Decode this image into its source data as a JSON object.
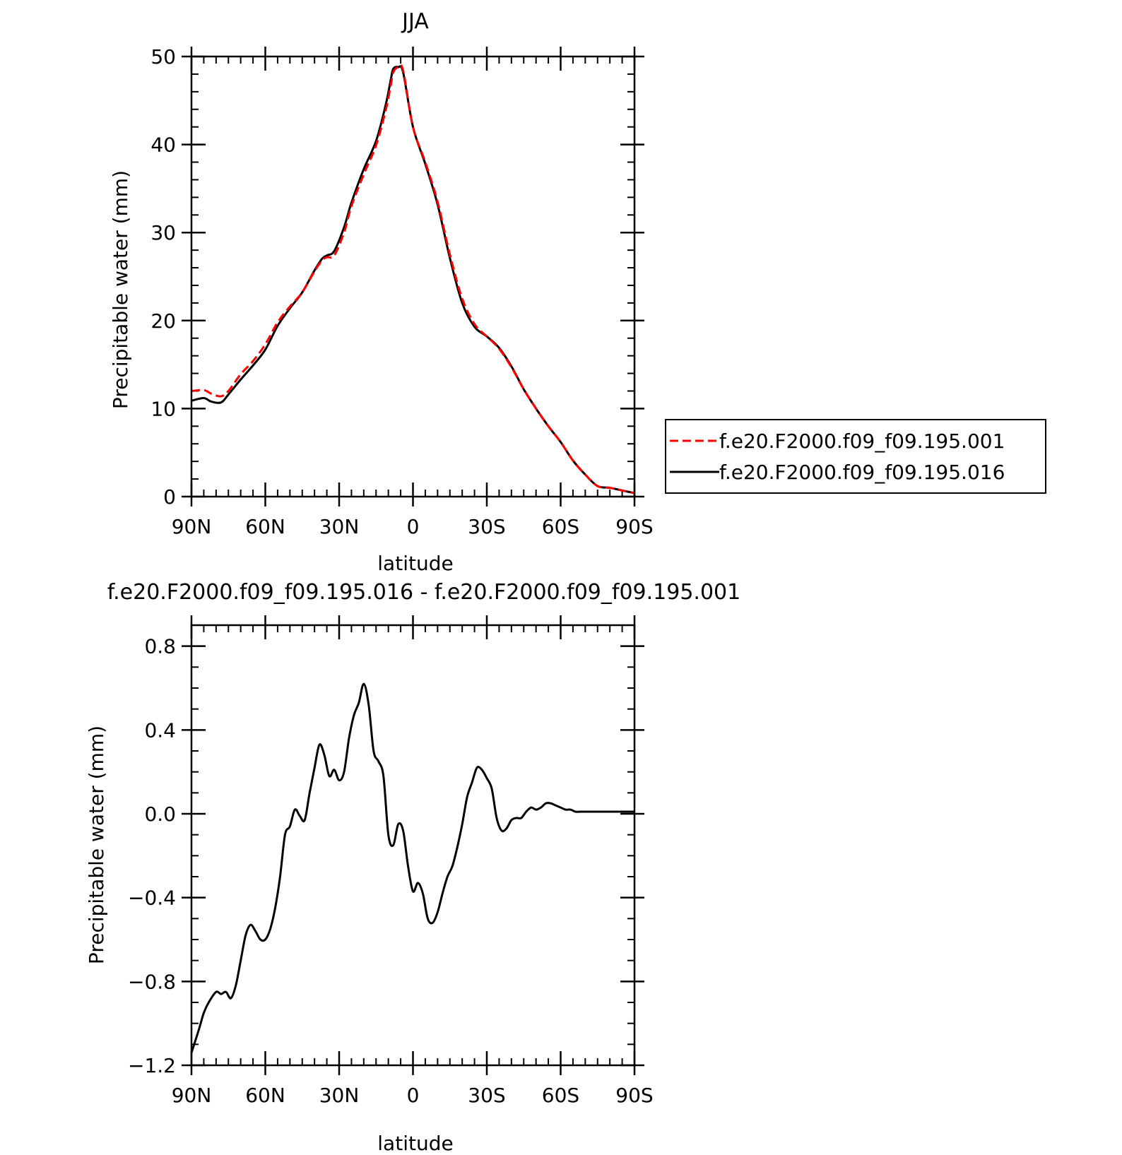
{
  "chart_data": [
    {
      "type": "line",
      "title": "JJA",
      "xlabel": "latitude",
      "ylabel": "Precipitable water (mm)",
      "xlim": [
        90,
        -90
      ],
      "ylim": [
        0,
        50
      ],
      "x_ticks": [
        90,
        60,
        30,
        0,
        -30,
        -60,
        -90
      ],
      "x_tick_labels": [
        "90N",
        "60N",
        "30N",
        "0",
        "30S",
        "60S",
        "90S"
      ],
      "y_ticks": [
        0,
        10,
        20,
        30,
        40,
        50
      ],
      "y_tick_labels": [
        "0",
        "10",
        "20",
        "30",
        "40",
        "50"
      ],
      "legend_position": "outside-right",
      "grid": false,
      "series": [
        {
          "name": "f.e20.F2000.f09_f09.195.001",
          "color": "#ff0000",
          "dash": "dashed",
          "x": [
            90,
            85,
            82,
            78,
            75,
            70,
            65,
            60,
            55,
            50,
            45,
            40,
            37,
            35,
            32,
            28,
            25,
            20,
            15,
            11,
            9,
            8,
            6,
            4,
            0,
            -5,
            -10,
            -15,
            -20,
            -25,
            -30,
            -35,
            -40,
            -45,
            -50,
            -55,
            -60,
            -65,
            -70,
            -75,
            -80,
            -85,
            -90
          ],
          "y": [
            12.0,
            12.1,
            11.7,
            11.4,
            12.0,
            13.9,
            15.4,
            17.3,
            19.8,
            21.6,
            23.2,
            25.6,
            26.8,
            27.2,
            27.4,
            30.0,
            33.0,
            36.6,
            39.9,
            44.0,
            46.8,
            48.2,
            48.8,
            48.4,
            42.0,
            38.0,
            33.5,
            27.5,
            22.5,
            19.6,
            18.2,
            16.8,
            14.7,
            12.2,
            10.0,
            8.0,
            6.2,
            4.1,
            2.5,
            1.2,
            1.0,
            0.7,
            0.4
          ]
        },
        {
          "name": "f.e20.F2000.f09_f09.195.016",
          "color": "#000000",
          "dash": "solid",
          "x": [
            90,
            85,
            82,
            78,
            75,
            70,
            65,
            60,
            55,
            50,
            45,
            40,
            37,
            35,
            32,
            28,
            25,
            20,
            15,
            11,
            9,
            8,
            6,
            4,
            0,
            -5,
            -10,
            -15,
            -20,
            -25,
            -30,
            -35,
            -40,
            -45,
            -50,
            -55,
            -60,
            -65,
            -70,
            -75,
            -80,
            -85,
            -90
          ],
          "y": [
            10.9,
            11.2,
            10.8,
            10.7,
            11.6,
            13.3,
            14.9,
            16.7,
            19.4,
            21.4,
            23.2,
            25.7,
            27.0,
            27.4,
            27.9,
            30.6,
            33.4,
            37.2,
            40.4,
            44.6,
            47.4,
            48.6,
            48.8,
            48.2,
            42.0,
            37.8,
            33.2,
            27.1,
            22.0,
            19.3,
            18.2,
            16.9,
            14.8,
            12.2,
            10.0,
            8.0,
            6.2,
            4.1,
            2.5,
            1.2,
            1.0,
            0.7,
            0.4
          ]
        }
      ]
    },
    {
      "type": "line",
      "title": "f.e20.F2000.f09_f09.195.016 - f.e20.F2000.f09_f09.195.001",
      "xlabel": "latitude",
      "ylabel": "Precipitable water (mm)",
      "xlim": [
        90,
        -90
      ],
      "ylim": [
        -1.2,
        0.9
      ],
      "x_ticks": [
        90,
        60,
        30,
        0,
        -30,
        -60,
        -90
      ],
      "x_tick_labels": [
        "90N",
        "60N",
        "30N",
        "0",
        "30S",
        "60S",
        "90S"
      ],
      "y_ticks": [
        -1.2,
        -0.8,
        -0.4,
        0.0,
        0.4,
        0.8
      ],
      "y_tick_labels": [
        "−1.2",
        "−0.8",
        "−0.4",
        "0.0",
        "0.4",
        "0.8"
      ],
      "grid": false,
      "series": [
        {
          "color": "#000000",
          "dash": "solid",
          "x": [
            90,
            87,
            85,
            83,
            80,
            78,
            76,
            74,
            72,
            70,
            68,
            66,
            64,
            62,
            60,
            58,
            56,
            54,
            52,
            50,
            48,
            46,
            44,
            42,
            40,
            38,
            36,
            34,
            32,
            30,
            28,
            26,
            24,
            22,
            20,
            18,
            16,
            14,
            12,
            10,
            8,
            6,
            4,
            2,
            0,
            -2,
            -4,
            -6,
            -8,
            -10,
            -12,
            -14,
            -16,
            -18,
            -20,
            -22,
            -24,
            -26,
            -28,
            -30,
            -32,
            -34,
            -36,
            -38,
            -40,
            -42,
            -44,
            -46,
            -48,
            -50,
            -52,
            -54,
            -56,
            -58,
            -60,
            -62,
            -64,
            -66,
            -68,
            -70,
            -72,
            -74,
            -76,
            -78,
            -80,
            -82,
            -84,
            -86,
            -88,
            -90
          ],
          "y": [
            -1.14,
            -1.03,
            -0.95,
            -0.9,
            -0.85,
            -0.86,
            -0.85,
            -0.88,
            -0.82,
            -0.7,
            -0.58,
            -0.53,
            -0.56,
            -0.6,
            -0.6,
            -0.55,
            -0.45,
            -0.3,
            -0.1,
            -0.06,
            0.02,
            -0.01,
            -0.03,
            0.1,
            0.22,
            0.33,
            0.28,
            0.18,
            0.21,
            0.16,
            0.2,
            0.36,
            0.47,
            0.53,
            0.62,
            0.52,
            0.3,
            0.25,
            0.18,
            -0.1,
            -0.15,
            -0.05,
            -0.08,
            -0.25,
            -0.37,
            -0.33,
            -0.38,
            -0.5,
            -0.52,
            -0.47,
            -0.38,
            -0.3,
            -0.25,
            -0.16,
            -0.05,
            0.08,
            0.15,
            0.22,
            0.21,
            0.17,
            0.12,
            -0.02,
            -0.08,
            -0.07,
            -0.03,
            -0.02,
            -0.02,
            0.01,
            0.03,
            0.02,
            0.03,
            0.05,
            0.05,
            0.04,
            0.03,
            0.02,
            0.02,
            0.01,
            0.01,
            0.01,
            0.01,
            0.01,
            0.01,
            0.01,
            0.01,
            0.01,
            0.01,
            0.01,
            0.01,
            0.01
          ]
        }
      ]
    }
  ]
}
